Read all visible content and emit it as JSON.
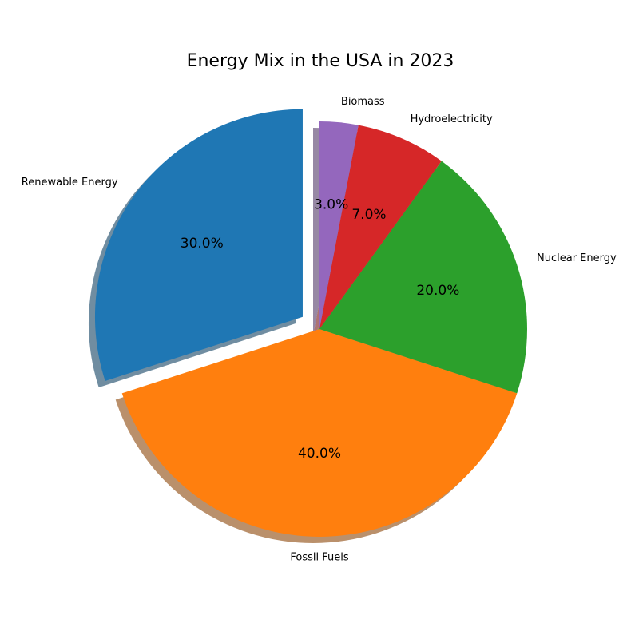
{
  "chart_data": {
    "type": "pie",
    "title": "Energy Mix in the USA in 2023",
    "categories": [
      "Renewable Energy",
      "Fossil Fuels",
      "Nuclear Energy",
      "Hydroelectricity",
      "Biomass"
    ],
    "values": [
      30,
      40,
      20,
      7,
      3
    ],
    "percent_labels": [
      "30.0%",
      "40.0%",
      "20.0%",
      "7.0%",
      "3.0%"
    ],
    "colors": [
      "#1f77b4",
      "#ff7f0e",
      "#2ca02c",
      "#d62728",
      "#9467bd"
    ],
    "explode": [
      0.1,
      0,
      0,
      0,
      0
    ],
    "start_angle_deg": 90,
    "direction": "counterclockwise",
    "shadow": true
  }
}
